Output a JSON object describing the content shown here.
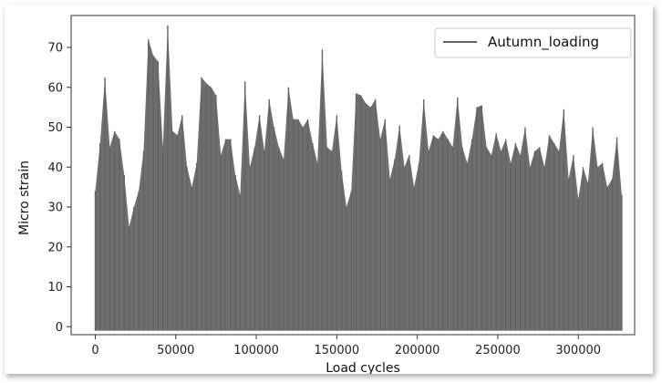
{
  "chart_data": {
    "type": "line",
    "xlabel": "Load cycles",
    "ylabel": "Micro strain",
    "xlim": [
      -15000,
      335000
    ],
    "ylim": [
      -2,
      78
    ],
    "x_ticks": [
      0,
      50000,
      100000,
      150000,
      200000,
      250000,
      300000
    ],
    "y_ticks": [
      0,
      10,
      20,
      30,
      40,
      50,
      60,
      70
    ],
    "legend_position": "top-right",
    "grid": false,
    "series": [
      {
        "name": "Autumn_loading",
        "color": "#636363",
        "min_value": -1,
        "x": [
          0,
          3000,
          6000,
          9000,
          12000,
          15000,
          18000,
          21000,
          24000,
          27000,
          30000,
          33000,
          36000,
          39000,
          42000,
          45000,
          48000,
          51000,
          54000,
          57000,
          60000,
          63000,
          66000,
          69000,
          72000,
          75000,
          78000,
          81000,
          84000,
          87000,
          90000,
          93000,
          96000,
          99000,
          102000,
          105000,
          108000,
          111000,
          114000,
          117000,
          120000,
          123000,
          126000,
          129000,
          132000,
          135000,
          138000,
          141000,
          144000,
          147000,
          150000,
          153000,
          156000,
          159000,
          162000,
          165000,
          168000,
          171000,
          174000,
          177000,
          180000,
          183000,
          186000,
          189000,
          192000,
          195000,
          198000,
          201000,
          204000,
          207000,
          210000,
          213000,
          216000,
          219000,
          222000,
          225000,
          228000,
          231000,
          234000,
          237000,
          240000,
          243000,
          246000,
          249000,
          252000,
          255000,
          258000,
          261000,
          264000,
          267000,
          270000,
          273000,
          276000,
          279000,
          282000,
          285000,
          288000,
          291000,
          294000,
          297000,
          300000,
          303000,
          306000,
          309000,
          312000,
          315000,
          318000,
          321000,
          324000,
          327000
        ],
        "y": [
          34,
          46,
          62.5,
          45,
          49,
          47,
          38,
          25,
          30,
          34,
          44,
          72,
          68,
          66.5,
          45,
          75.5,
          49,
          48,
          53,
          40,
          35,
          41,
          62.5,
          61,
          60,
          58,
          43,
          47,
          47,
          38,
          33,
          61.5,
          40,
          45,
          53,
          44,
          57,
          50,
          45,
          42,
          60,
          52,
          52,
          50,
          52,
          46,
          41,
          69.5,
          45,
          44,
          53,
          39,
          30,
          34,
          58.5,
          58,
          56,
          55,
          57,
          47,
          52,
          37,
          42,
          50.5,
          40,
          43,
          35,
          41,
          57,
          44,
          48,
          47,
          49,
          47,
          45,
          57.5,
          45,
          41,
          47,
          55,
          55.5,
          45,
          43,
          48.5,
          44,
          47,
          41,
          46,
          43,
          50,
          40,
          44,
          45,
          40,
          48,
          46,
          44,
          54.5,
          37,
          43,
          32,
          40,
          36,
          50,
          40,
          41,
          35,
          37,
          47.5,
          33
        ]
      }
    ]
  }
}
